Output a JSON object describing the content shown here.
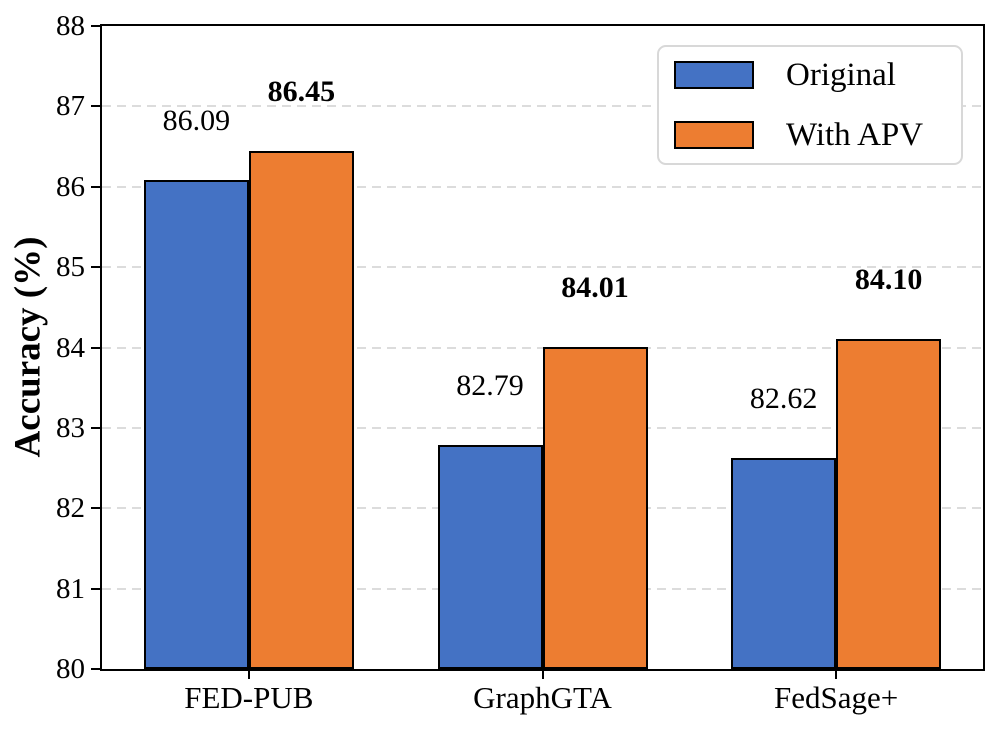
{
  "chart_data": {
    "type": "bar",
    "title": "",
    "xlabel": "",
    "ylabel": "Accuracy (%)",
    "categories": [
      "FED-PUB",
      "GraphGTA",
      "FedSage+"
    ],
    "series": [
      {
        "name": "Original",
        "color": "#4472C4",
        "values": [
          86.09,
          82.79,
          82.62
        ],
        "bold_value_labels": false
      },
      {
        "name": "With APV",
        "color": "#ED7D31",
        "values": [
          86.45,
          84.01,
          84.1
        ],
        "bold_value_labels": true
      }
    ],
    "value_labels": {
      "Original": [
        "86.09",
        "82.79",
        "82.62"
      ],
      "With APV": [
        "86.45",
        "84.01",
        "84.10"
      ]
    },
    "ylim": [
      80,
      88
    ],
    "ytick_labels": [
      "80",
      "81",
      "82",
      "83",
      "84",
      "85",
      "86",
      "87",
      "88"
    ],
    "ytick_step": 1,
    "grid": "horizontal dashed, light gray",
    "grid_color": "#dcdcdc",
    "bar_edge_color": "#000000",
    "legend_position": "upper right",
    "legend_entries": [
      "Original",
      "With APV"
    ]
  }
}
